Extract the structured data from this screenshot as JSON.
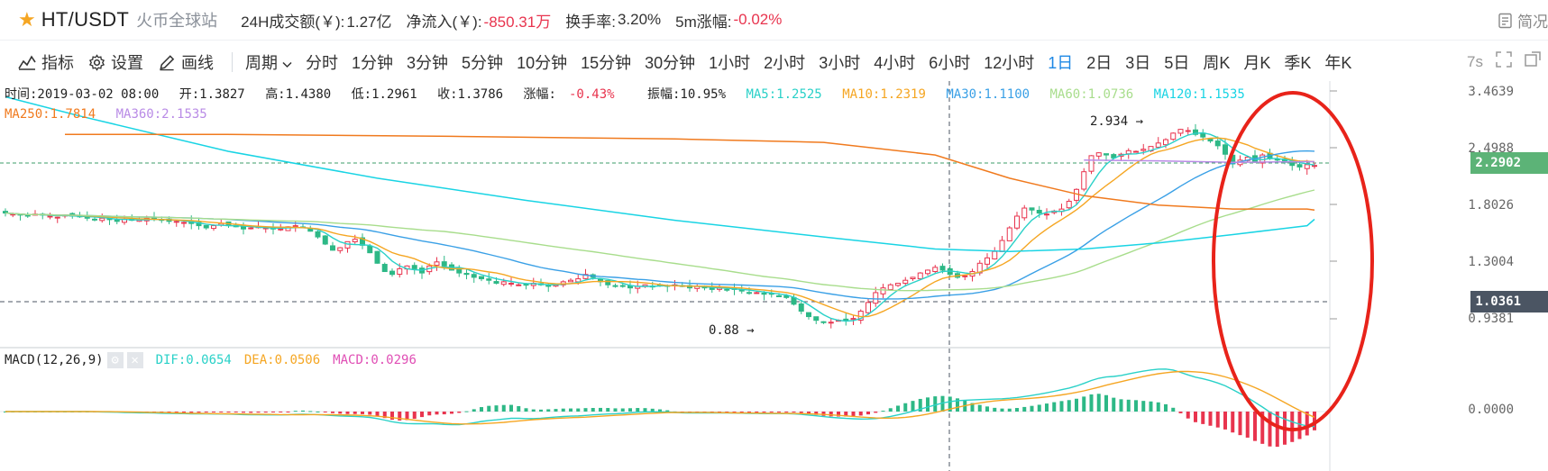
{
  "header": {
    "pair": "HT/USDT",
    "exchange": "火币全球站",
    "volume_label": "24H成交额(￥):",
    "volume_value": "1.27亿",
    "inflow_label": "净流入(￥):",
    "inflow_value": "-850.31万",
    "turnover_label": "换手率:",
    "turnover_value": "3.20%",
    "change5m_label": "5m涨幅:",
    "change5m_value": "-0.02%",
    "right_link": "简况"
  },
  "toolbar": {
    "indicator_label": "指标",
    "settings_label": "设置",
    "draw_label": "画线",
    "period_label": "周期",
    "periods": [
      "分时",
      "1分钟",
      "3分钟",
      "5分钟",
      "10分钟",
      "15分钟",
      "30分钟",
      "1小时",
      "2小时",
      "3小时",
      "4小时",
      "6小时",
      "12小时",
      "1日",
      "2日",
      "3日",
      "5日",
      "周K",
      "月K",
      "季K",
      "年K"
    ],
    "active_period": "1日",
    "refresh": "7s"
  },
  "info": {
    "time": "时间:2019-03-02 08:00",
    "open": "开:1.3827",
    "high": "高:1.4380",
    "low": "低:1.2961",
    "close": "收:1.3786",
    "change_label": "涨幅:",
    "change_value": "-0.43%",
    "amplitude": "振幅:10.95%",
    "ma5": "MA5:1.2525",
    "ma10": "MA10:1.2319",
    "ma30": "MA30:1.1100",
    "ma60": "MA60:1.0736",
    "ma120": "MA120:1.1535",
    "ma250": "MA250:1.7814",
    "ma360": "MA360:2.1535"
  },
  "macd": {
    "title": "MACD(12,26,9)",
    "dif": "DIF:0.0654",
    "dea": "DEA:0.0506",
    "macd": "MACD:0.0296"
  },
  "axis": {
    "ticks": [
      "3.4639",
      "2.4988",
      "1.8026",
      "1.3004",
      "0.9381"
    ],
    "current_price": "2.2902",
    "crosshair_price": "1.0361",
    "macd_zero": "0.0000"
  },
  "annotations": {
    "high_mark": "2.934 →",
    "low_mark": "0.88 →"
  },
  "colors": {
    "up": "#e8344e",
    "down": "#2db886",
    "ma5": "#2ad1c8",
    "ma10": "#f5a623",
    "ma30": "#3aa0e6",
    "ma60": "#a8dd8c",
    "ma120": "#19d4e4",
    "ma250": "#f07a1e",
    "ma360": "#b98be6",
    "current_price_bg": "#5cb377",
    "crosshair_bg": "#4b5563",
    "highlight_ellipse": "#e8231a"
  },
  "chart_data": {
    "type": "candlestick",
    "scale": "log",
    "y_ticks": [
      3.4639,
      2.4988,
      1.8026,
      1.3004,
      0.9381
    ],
    "closes": [
      1.72,
      1.71,
      1.7,
      1.69,
      1.71,
      1.7,
      1.69,
      1.68,
      1.7,
      1.69,
      1.69,
      1.67,
      1.66,
      1.67,
      1.66,
      1.64,
      1.66,
      1.65,
      1.66,
      1.67,
      1.66,
      1.65,
      1.64,
      1.64,
      1.63,
      1.62,
      1.6,
      1.58,
      1.6,
      1.62,
      1.6,
      1.59,
      1.57,
      1.58,
      1.59,
      1.58,
      1.57,
      1.57,
      1.59,
      1.6,
      1.58,
      1.55,
      1.5,
      1.44,
      1.39,
      1.41,
      1.46,
      1.48,
      1.43,
      1.37,
      1.29,
      1.23,
      1.21,
      1.25,
      1.27,
      1.25,
      1.22,
      1.27,
      1.3,
      1.27,
      1.24,
      1.22,
      1.21,
      1.19,
      1.18,
      1.17,
      1.15,
      1.16,
      1.15,
      1.14,
      1.14,
      1.15,
      1.14,
      1.13,
      1.14,
      1.16,
      1.17,
      1.18,
      1.21,
      1.19,
      1.16,
      1.14,
      1.13,
      1.13,
      1.12,
      1.13,
      1.14,
      1.13,
      1.14,
      1.13,
      1.14,
      1.13,
      1.12,
      1.13,
      1.12,
      1.11,
      1.12,
      1.11,
      1.11,
      1.1,
      1.09,
      1.09,
      1.08,
      1.08,
      1.07,
      1.06,
      1.02,
      0.98,
      0.95,
      0.93,
      0.92,
      0.92,
      0.93,
      0.93,
      0.94,
      0.98,
      1.03,
      1.09,
      1.12,
      1.14,
      1.15,
      1.17,
      1.19,
      1.22,
      1.24,
      1.26,
      1.24,
      1.21,
      1.19,
      1.2,
      1.23,
      1.29,
      1.33,
      1.38,
      1.47,
      1.58,
      1.69,
      1.77,
      1.75,
      1.72,
      1.71,
      1.74,
      1.76,
      1.84,
      1.97,
      2.18,
      2.39,
      2.43,
      2.4,
      2.36,
      2.41,
      2.46,
      2.45,
      2.48,
      2.52,
      2.57,
      2.62,
      2.72,
      2.78,
      2.76,
      2.7,
      2.66,
      2.6,
      2.53,
      2.41,
      2.28,
      2.33,
      2.37,
      2.3,
      2.4,
      2.35,
      2.33,
      2.3,
      2.26,
      2.24,
      2.27,
      2.26
    ],
    "annotations": [
      {
        "label": "2.934",
        "value": 2.934
      },
      {
        "label": "0.88",
        "value": 0.88
      }
    ]
  }
}
